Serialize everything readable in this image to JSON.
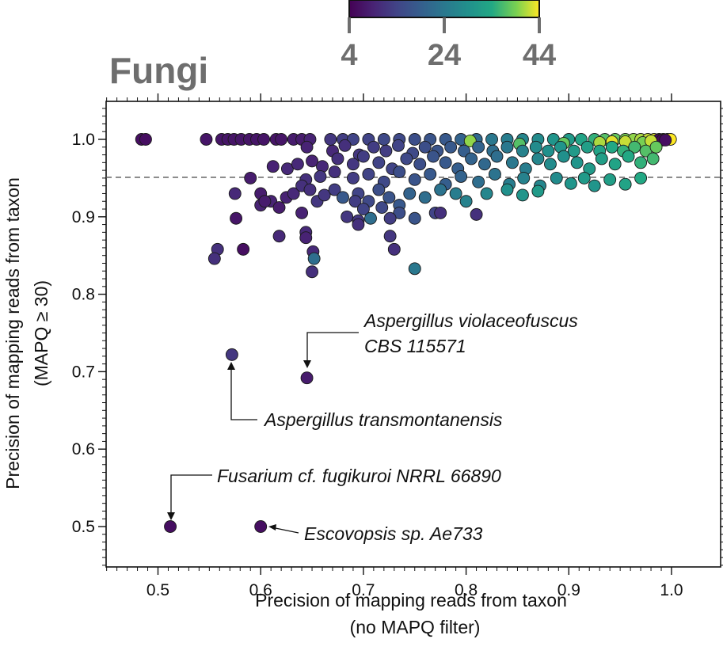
{
  "chart_data": {
    "type": "scatter",
    "title": "Fungi",
    "xlabel": [
      "Precision of mapping reads from taxon",
      "(no MAPQ filter)"
    ],
    "ylabel": [
      "Precision of mapping reads from taxon",
      "(MAPQ ≥ 30)"
    ],
    "xlim": [
      0.45,
      1.0
    ],
    "ylim": [
      0.44,
      1.05
    ],
    "x_ticks": [
      "0.5",
      "0.6",
      "0.7",
      "0.8",
      "0.9",
      "1.0"
    ],
    "y_ticks": [
      "0.5",
      "0.6",
      "0.7",
      "0.8",
      "0.9",
      "1.0"
    ],
    "reference_line_y": 0.951,
    "grid": false,
    "colorbar": {
      "ticks": [
        "4",
        "24",
        "44"
      ],
      "min": 4,
      "max": 44,
      "colormap": "viridis"
    },
    "annotations": [
      {
        "text": [
          "Aspergillus violaceofuscus",
          "CBS 115571"
        ],
        "x": 0.645,
        "y": 0.692
      },
      {
        "text": [
          "Aspergillus transmontanensis"
        ],
        "x": 0.572,
        "y": 0.722
      },
      {
        "text": [
          "Fusarium cf. fugikuroi NRRL 66890"
        ],
        "x": 0.512,
        "y": 0.5
      },
      {
        "text": [
          "Escovopsis sp. Ae733"
        ],
        "x": 0.6,
        "y": 0.5
      }
    ],
    "points": [
      [
        0.484,
        1.0,
        6
      ],
      [
        0.488,
        1.0,
        6
      ],
      [
        0.547,
        1.0,
        7
      ],
      [
        0.562,
        1.0,
        7
      ],
      [
        0.568,
        1.0,
        7
      ],
      [
        0.574,
        1.0,
        7
      ],
      [
        0.581,
        1.0,
        7
      ],
      [
        0.589,
        1.0,
        7
      ],
      [
        0.596,
        1.0,
        7
      ],
      [
        0.603,
        1.0,
        7
      ],
      [
        0.615,
        1.0,
        7
      ],
      [
        0.62,
        1.0,
        7
      ],
      [
        0.632,
        1.0,
        8
      ],
      [
        0.64,
        1.0,
        8
      ],
      [
        0.648,
        1.0,
        9
      ],
      [
        0.668,
        1.0,
        12
      ],
      [
        0.68,
        1.0,
        13
      ],
      [
        0.69,
        1.0,
        14
      ],
      [
        0.705,
        1.0,
        14
      ],
      [
        0.72,
        1.0,
        15
      ],
      [
        0.735,
        1.0,
        15
      ],
      [
        0.75,
        1.0,
        16
      ],
      [
        0.765,
        1.0,
        17
      ],
      [
        0.78,
        1.0,
        18
      ],
      [
        0.795,
        1.0,
        20
      ],
      [
        0.81,
        1.0,
        21
      ],
      [
        0.825,
        1.0,
        24
      ],
      [
        0.84,
        1.0,
        25
      ],
      [
        0.855,
        1.0,
        27
      ],
      [
        0.87,
        1.0,
        28
      ],
      [
        0.885,
        1.0,
        30
      ],
      [
        0.9,
        1.0,
        31
      ],
      [
        0.912,
        1.0,
        33
      ],
      [
        0.925,
        1.0,
        35
      ],
      [
        0.935,
        1.0,
        37
      ],
      [
        0.945,
        1.0,
        38
      ],
      [
        0.955,
        1.0,
        39
      ],
      [
        0.963,
        1.0,
        40
      ],
      [
        0.97,
        1.0,
        41
      ],
      [
        0.977,
        1.0,
        42
      ],
      [
        0.983,
        1.0,
        43
      ],
      [
        0.988,
        1.0,
        43
      ],
      [
        0.992,
        1.0,
        44
      ],
      [
        0.996,
        1.0,
        44
      ],
      [
        0.999,
        1.0,
        44
      ],
      [
        0.987,
        0.999,
        5
      ],
      [
        0.991,
        0.999,
        5
      ],
      [
        0.994,
        0.999,
        6
      ],
      [
        0.804,
        0.998,
        40
      ],
      [
        0.942,
        0.997,
        43
      ],
      [
        0.955,
        0.997,
        42
      ],
      [
        0.852,
        0.994,
        37
      ],
      [
        0.895,
        0.995,
        38
      ],
      [
        0.93,
        0.996,
        41
      ],
      [
        0.972,
        0.996,
        39
      ],
      [
        0.98,
        0.998,
        42
      ],
      [
        0.645,
        0.99,
        9
      ],
      [
        0.67,
        0.985,
        10
      ],
      [
        0.682,
        0.992,
        11
      ],
      [
        0.696,
        0.98,
        12
      ],
      [
        0.71,
        0.99,
        13
      ],
      [
        0.722,
        0.985,
        13
      ],
      [
        0.734,
        0.992,
        14
      ],
      [
        0.748,
        0.982,
        15
      ],
      [
        0.76,
        0.99,
        16
      ],
      [
        0.772,
        0.985,
        17
      ],
      [
        0.785,
        0.99,
        18
      ],
      [
        0.798,
        0.985,
        19
      ],
      [
        0.812,
        0.99,
        20
      ],
      [
        0.826,
        0.985,
        22
      ],
      [
        0.84,
        0.99,
        24
      ],
      [
        0.855,
        0.985,
        26
      ],
      [
        0.868,
        0.99,
        28
      ],
      [
        0.88,
        0.985,
        29
      ],
      [
        0.892,
        0.99,
        30
      ],
      [
        0.905,
        0.985,
        31
      ],
      [
        0.918,
        0.99,
        32
      ],
      [
        0.93,
        0.985,
        33
      ],
      [
        0.942,
        0.99,
        34
      ],
      [
        0.953,
        0.985,
        35
      ],
      [
        0.964,
        0.99,
        36
      ],
      [
        0.975,
        0.985,
        37
      ],
      [
        0.985,
        0.99,
        38
      ],
      [
        0.65,
        0.972,
        9
      ],
      [
        0.66,
        0.965,
        10
      ],
      [
        0.675,
        0.975,
        11
      ],
      [
        0.69,
        0.968,
        12
      ],
      [
        0.7,
        0.978,
        13
      ],
      [
        0.715,
        0.97,
        14
      ],
      [
        0.728,
        0.962,
        14
      ],
      [
        0.742,
        0.975,
        15
      ],
      [
        0.755,
        0.968,
        16
      ],
      [
        0.768,
        0.978,
        17
      ],
      [
        0.78,
        0.97,
        18
      ],
      [
        0.792,
        0.962,
        19
      ],
      [
        0.805,
        0.975,
        20
      ],
      [
        0.818,
        0.968,
        21
      ],
      [
        0.83,
        0.978,
        22
      ],
      [
        0.845,
        0.97,
        24
      ],
      [
        0.858,
        0.962,
        25
      ],
      [
        0.87,
        0.975,
        27
      ],
      [
        0.882,
        0.968,
        28
      ],
      [
        0.895,
        0.978,
        29
      ],
      [
        0.908,
        0.97,
        30
      ],
      [
        0.92,
        0.962,
        31
      ],
      [
        0.932,
        0.975,
        32
      ],
      [
        0.945,
        0.968,
        33
      ],
      [
        0.958,
        0.978,
        34
      ],
      [
        0.97,
        0.97,
        35
      ],
      [
        0.982,
        0.975,
        36
      ],
      [
        0.626,
        0.962,
        10
      ],
      [
        0.612,
        0.965,
        9
      ],
      [
        0.636,
        0.968,
        10
      ],
      [
        0.644,
        0.948,
        11
      ],
      [
        0.658,
        0.952,
        12
      ],
      [
        0.672,
        0.958,
        11
      ],
      [
        0.69,
        0.95,
        13
      ],
      [
        0.705,
        0.955,
        14
      ],
      [
        0.72,
        0.945,
        15
      ],
      [
        0.735,
        0.958,
        16
      ],
      [
        0.75,
        0.948,
        17
      ],
      [
        0.765,
        0.955,
        18
      ],
      [
        0.78,
        0.942,
        19
      ],
      [
        0.795,
        0.952,
        20
      ],
      [
        0.812,
        0.945,
        22
      ],
      [
        0.828,
        0.955,
        23
      ],
      [
        0.842,
        0.942,
        25
      ],
      [
        0.856,
        0.95,
        26
      ],
      [
        0.872,
        0.94,
        27
      ],
      [
        0.888,
        0.95,
        28
      ],
      [
        0.902,
        0.943,
        30
      ],
      [
        0.915,
        0.95,
        31
      ],
      [
        0.925,
        0.94,
        30
      ],
      [
        0.94,
        0.948,
        32
      ],
      [
        0.955,
        0.942,
        33
      ],
      [
        0.97,
        0.95,
        34
      ],
      [
        0.59,
        0.95,
        8
      ],
      [
        0.6,
        0.93,
        8
      ],
      [
        0.61,
        0.92,
        9
      ],
      [
        0.618,
        0.912,
        8
      ],
      [
        0.625,
        0.925,
        9
      ],
      [
        0.632,
        0.93,
        10
      ],
      [
        0.64,
        0.94,
        11
      ],
      [
        0.648,
        0.935,
        11
      ],
      [
        0.655,
        0.92,
        12
      ],
      [
        0.662,
        0.928,
        12
      ],
      [
        0.672,
        0.935,
        13
      ],
      [
        0.68,
        0.925,
        18
      ],
      [
        0.695,
        0.93,
        14
      ],
      [
        0.705,
        0.92,
        15
      ],
      [
        0.715,
        0.935,
        16
      ],
      [
        0.725,
        0.925,
        17
      ],
      [
        0.735,
        0.915,
        18
      ],
      [
        0.745,
        0.93,
        20
      ],
      [
        0.76,
        0.925,
        22
      ],
      [
        0.775,
        0.935,
        23
      ],
      [
        0.79,
        0.93,
        25
      ],
      [
        0.8,
        0.92,
        26
      ],
      [
        0.82,
        0.93,
        27
      ],
      [
        0.84,
        0.935,
        29
      ],
      [
        0.855,
        0.928,
        30
      ],
      [
        0.87,
        0.933,
        31
      ],
      [
        0.575,
        0.93,
        10
      ],
      [
        0.6,
        0.915,
        9
      ],
      [
        0.604,
        0.92,
        8
      ],
      [
        0.64,
        0.905,
        9
      ],
      [
        0.684,
        0.9,
        12
      ],
      [
        0.692,
        0.92,
        13
      ],
      [
        0.7,
        0.91,
        14
      ],
      [
        0.718,
        0.912,
        15
      ],
      [
        0.735,
        0.905,
        16
      ],
      [
        0.75,
        0.898,
        17
      ],
      [
        0.77,
        0.905,
        14
      ],
      [
        0.695,
        0.895,
        12
      ],
      [
        0.707,
        0.898,
        22
      ],
      [
        0.726,
        0.898,
        13
      ],
      [
        0.775,
        0.905,
        11
      ],
      [
        0.81,
        0.903,
        11
      ],
      [
        0.576,
        0.898,
        7
      ],
      [
        0.583,
        0.858,
        6
      ],
      [
        0.558,
        0.858,
        11
      ],
      [
        0.555,
        0.846,
        11
      ],
      [
        0.644,
        0.88,
        10
      ],
      [
        0.644,
        0.873,
        9
      ],
      [
        0.618,
        0.875,
        10
      ],
      [
        0.726,
        0.875,
        12
      ],
      [
        0.695,
        0.89,
        11
      ],
      [
        0.73,
        0.858,
        11
      ],
      [
        0.651,
        0.855,
        10
      ],
      [
        0.652,
        0.846,
        22
      ],
      [
        0.65,
        0.829,
        11
      ],
      [
        0.75,
        0.833,
        24
      ],
      [
        0.572,
        0.722,
        12
      ],
      [
        0.645,
        0.692,
        8
      ],
      [
        0.512,
        0.5,
        6
      ],
      [
        0.6,
        0.5,
        6
      ]
    ]
  }
}
